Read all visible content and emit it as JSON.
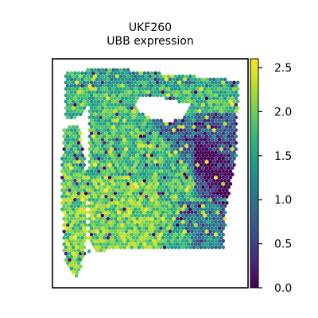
{
  "chart_data": {
    "type": "scatter",
    "title": [
      "UKF260",
      "UBB expression"
    ],
    "xlabel": "",
    "ylabel": "",
    "grid": false,
    "colormap": "viridis",
    "colorbar": {
      "vmin": 0.0,
      "vmax": 2.6,
      "ticks": [
        0.0,
        0.5,
        1.0,
        1.5,
        2.0,
        2.5
      ],
      "tick_labels": [
        "0.0",
        "0.5",
        "1.0",
        "1.5",
        "2.0",
        "2.5"
      ]
    },
    "tissue_regions": [
      {
        "name": "main",
        "x": [
          0.0,
          1.0
        ],
        "y": [
          0.0,
          1.0
        ]
      },
      {
        "name": "left-strip",
        "x": [
          0.0,
          0.13
        ],
        "y": [
          0.0,
          1.0
        ]
      },
      {
        "name": "upper-hole",
        "x": [
          0.32,
          0.55
        ],
        "y": [
          0.72,
          0.86
        ]
      },
      {
        "name": "low-expression-band",
        "x": [
          0.48,
          0.92
        ],
        "y": [
          0.12,
          0.9
        ]
      }
    ]
  },
  "colors": {
    "viridis": [
      "#440154",
      "#482878",
      "#3e4989",
      "#31688e",
      "#26828e",
      "#1f9e89",
      "#35b779",
      "#6ece58",
      "#b5de2b",
      "#fde725"
    ],
    "frame": "#000000"
  }
}
